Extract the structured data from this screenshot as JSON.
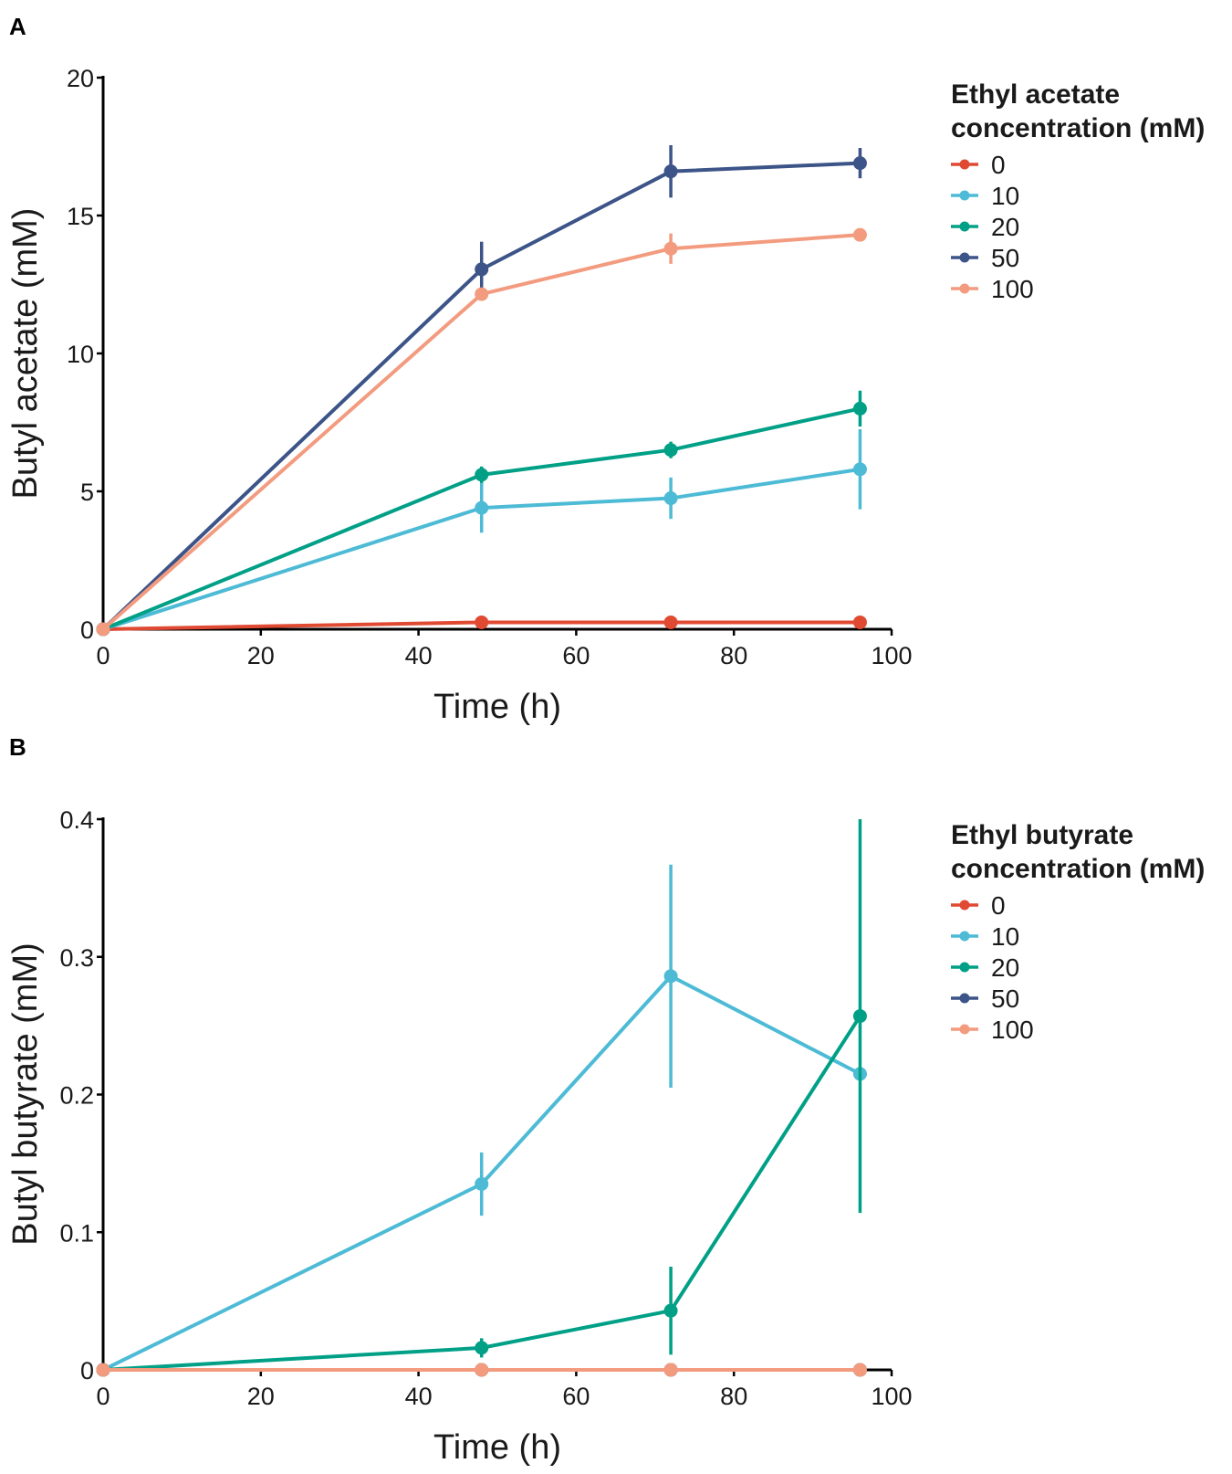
{
  "chart_data": [
    {
      "type": "line",
      "panel_label": "A",
      "xlabel": "Time (h)",
      "ylabel": "Butyl acetate (mM)",
      "xlim": [
        0,
        100
      ],
      "ylim": [
        0,
        20
      ],
      "xticks": [
        0,
        20,
        40,
        60,
        80,
        100
      ],
      "yticks": [
        0,
        5,
        10,
        15,
        20
      ],
      "xtick_labels": [
        "0",
        "20",
        "40",
        "60",
        "80",
        "100"
      ],
      "ytick_labels": [
        "0",
        "5",
        "10",
        "15",
        "20"
      ],
      "grid": false,
      "legend": {
        "title_lines": [
          "Ethyl acetate",
          "concentration (mM)"
        ],
        "position": "right"
      },
      "x": [
        0,
        48,
        72,
        96
      ],
      "series": [
        {
          "name": "0",
          "color": "#E04A33",
          "values": [
            0,
            0.25,
            0.25,
            0.25
          ],
          "errors": [
            0,
            0.05,
            0.05,
            0.05
          ]
        },
        {
          "name": "10",
          "color": "#4DBBD5",
          "values": [
            0,
            4.4,
            4.75,
            5.8
          ],
          "errors": [
            0,
            0.9,
            0.75,
            1.45
          ]
        },
        {
          "name": "20",
          "color": "#00A087",
          "values": [
            0,
            5.6,
            6.5,
            8.0
          ],
          "errors": [
            0,
            0.3,
            0.3,
            0.65
          ]
        },
        {
          "name": "50",
          "color": "#3C5488",
          "values": [
            0,
            13.05,
            16.6,
            16.9
          ],
          "errors": [
            0,
            1.0,
            0.95,
            0.55
          ]
        },
        {
          "name": "100",
          "color": "#F39B7F",
          "values": [
            0,
            12.15,
            13.8,
            14.3
          ],
          "errors": [
            0,
            0.2,
            0.55,
            0.15
          ]
        }
      ]
    },
    {
      "type": "line",
      "panel_label": "B",
      "xlabel": "Time (h)",
      "ylabel": "Butyl butyrate (mM)",
      "xlim": [
        0,
        100
      ],
      "ylim": [
        0,
        0.4
      ],
      "xticks": [
        0,
        20,
        40,
        60,
        80,
        100
      ],
      "yticks": [
        0,
        0.1,
        0.2,
        0.3,
        0.4
      ],
      "xtick_labels": [
        "0",
        "20",
        "40",
        "60",
        "80",
        "100"
      ],
      "ytick_labels": [
        "0",
        "0.1",
        "0.2",
        "0.3",
        "0.4"
      ],
      "grid": false,
      "legend": {
        "title_lines": [
          "Ethyl butyrate",
          "concentration (mM)"
        ],
        "position": "right"
      },
      "x": [
        0,
        48,
        72,
        96
      ],
      "series": [
        {
          "name": "0",
          "color": "#E04A33",
          "values": [
            0,
            0,
            0,
            0
          ],
          "errors": [
            0,
            0,
            0,
            0
          ]
        },
        {
          "name": "10",
          "color": "#4DBBD5",
          "values": [
            0,
            0.135,
            0.286,
            0.215
          ],
          "errors": [
            0,
            0.023,
            0.081,
            0
          ]
        },
        {
          "name": "20",
          "color": "#00A087",
          "values": [
            0,
            0.016,
            0.043,
            0.257
          ],
          "errors": [
            0,
            0.007,
            0.032,
            0.143
          ]
        },
        {
          "name": "50",
          "color": "#3C5488",
          "values": [
            0,
            0,
            0,
            0
          ],
          "errors": [
            0,
            0,
            0,
            0
          ]
        },
        {
          "name": "100",
          "color": "#F39B7F",
          "values": [
            0,
            0,
            0,
            0
          ],
          "errors": [
            0,
            0,
            0,
            0
          ]
        }
      ]
    }
  ]
}
